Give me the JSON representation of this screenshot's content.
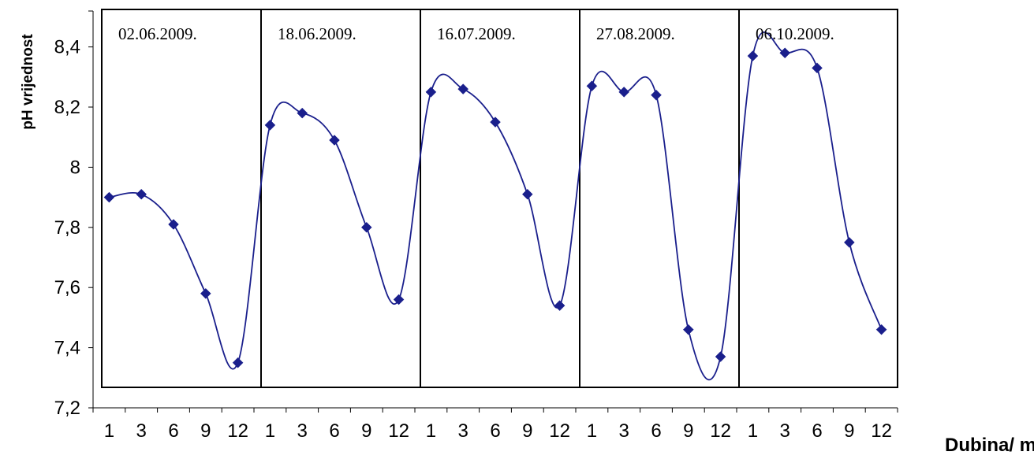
{
  "chart_data": {
    "type": "line",
    "ylabel": "pH vrijednost",
    "xlabel": "Dubina/ m",
    "ylim": [
      7.2,
      8.5
    ],
    "yticks": [
      "7,2",
      "7,4",
      "7,6",
      "7,8",
      "8",
      "8,2",
      "8,4"
    ],
    "x_tick_labels": [
      "1",
      "3",
      "6",
      "9",
      "12"
    ],
    "smooth": true,
    "colors": {
      "line": "#1a1f8c",
      "marker": "#1a1f8c",
      "frame": "#000000"
    },
    "panels": [
      {
        "date": "02.06.2009.",
        "depths": [
          1,
          3,
          6,
          9,
          12
        ],
        "values": [
          7.9,
          7.91,
          7.81,
          7.58,
          7.35
        ]
      },
      {
        "date": "18.06.2009.",
        "depths": [
          1,
          3,
          6,
          9,
          12
        ],
        "values": [
          8.14,
          8.18,
          8.09,
          7.8,
          7.56
        ]
      },
      {
        "date": "16.07.2009.",
        "depths": [
          1,
          3,
          6,
          9,
          12
        ],
        "values": [
          8.25,
          8.26,
          8.15,
          7.91,
          7.54
        ]
      },
      {
        "date": "27.08.2009.",
        "depths": [
          1,
          3,
          6,
          9,
          12
        ],
        "values": [
          8.27,
          8.25,
          8.24,
          7.46,
          7.37
        ]
      },
      {
        "date": "06.10.2009.",
        "depths": [
          1,
          3,
          6,
          9,
          12
        ],
        "values": [
          8.37,
          8.38,
          8.33,
          7.75,
          7.46
        ]
      }
    ]
  }
}
